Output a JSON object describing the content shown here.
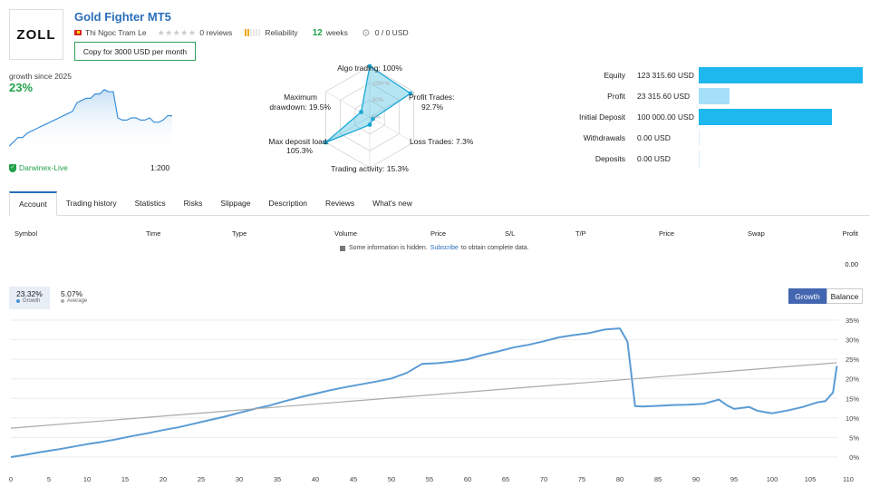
{
  "header": {
    "logo_text": "ZOLL",
    "title": "Gold Fighter MT5",
    "author": "Thi Ngoc Tram Le",
    "stars": "★★★★★",
    "reviews": "0 reviews",
    "reliability_label": "Reliability",
    "weeks_value": "12",
    "weeks_label": "weeks",
    "subscribers": "0 / 0 USD",
    "copy_button": "Copy for 3000 USD per month"
  },
  "growth_summary": {
    "label": "growth since 2025",
    "value": "23%",
    "broker": "Darwinex-Live",
    "leverage": "1:200",
    "sparkline": [
      2,
      4,
      6,
      6,
      8,
      9,
      10,
      11,
      12,
      13,
      14,
      15,
      16,
      17,
      18,
      22,
      23,
      24,
      24,
      26,
      26,
      28,
      27,
      27,
      15,
      14,
      14,
      15,
      15,
      14,
      14,
      15,
      13,
      13,
      14,
      16,
      16
    ]
  },
  "radar": {
    "labels": {
      "algo": "Algo trading: 100%",
      "profit": "Profit Trades:",
      "profit_val": "92.7%",
      "loss": "Loss Trades: 7.3%",
      "activity": "Trading activity: 15.3%",
      "deposit": "Max deposit load:",
      "deposit_val": "105.3%",
      "drawdown": "Maximum",
      "drawdown2": "drawdown: 19.5%",
      "scale_100": "100+%",
      "scale_50": "50%",
      "scale_0": "0%"
    },
    "values": [
      100,
      92.7,
      7.3,
      15.3,
      105.3,
      19.5
    ]
  },
  "metrics": [
    {
      "label": "Equity",
      "value": "123 315.60 USD",
      "amount": 123315.6,
      "color": "#1eb7ee"
    },
    {
      "label": "Profit",
      "value": "23 315.60 USD",
      "amount": 23315.6,
      "color": "#a4e0f7"
    },
    {
      "label": "Initial Deposit",
      "value": "100 000.00 USD",
      "amount": 100000.0,
      "color": "#1eb7ee"
    },
    {
      "label": "Withdrawals",
      "value": "0.00 USD",
      "amount": 0,
      "color": "#1eb7ee"
    },
    {
      "label": "Deposits",
      "value": "0.00 USD",
      "amount": 0,
      "color": "#1eb7ee"
    }
  ],
  "tabs": [
    "Account",
    "Trading history",
    "Statistics",
    "Risks",
    "Slippage",
    "Description",
    "Reviews",
    "What's new"
  ],
  "table": {
    "columns": [
      "Symbol",
      "Time",
      "Type",
      "Volume",
      "Price",
      "S/L",
      "T/P",
      "Price",
      "Swap",
      "Profit"
    ],
    "hidden_prefix": "Some information is hidden.",
    "hidden_link": "Subscribe",
    "hidden_suffix": "to obtain complete data.",
    "total_profit": "0.00"
  },
  "growth_tabs": [
    {
      "value": "23.32%",
      "label": "Growth"
    },
    {
      "value": "5.07%",
      "label": "Average"
    }
  ],
  "toggle": {
    "growth": "Growth",
    "balance": "Balance"
  },
  "chart_data": {
    "type": "line",
    "x_ticks": [
      0,
      5,
      10,
      15,
      20,
      25,
      30,
      35,
      40,
      45,
      50,
      55,
      60,
      65,
      70,
      75,
      80,
      85,
      90,
      95,
      100,
      105,
      110
    ],
    "y_ticks": [
      "0%",
      "5%",
      "10%",
      "15%",
      "20%",
      "25%",
      "30%",
      "35%"
    ],
    "xlim": [
      0,
      110
    ],
    "ylim": [
      0,
      35
    ],
    "grid": true,
    "series": [
      {
        "color": "#5b9bd5",
        "x": [
          0,
          2,
          4,
          6,
          8,
          10,
          12,
          14,
          16,
          18,
          20,
          22,
          24,
          26,
          28,
          30,
          32,
          34,
          36,
          38,
          40,
          42,
          44,
          46,
          48,
          50,
          52,
          54,
          56,
          58,
          60,
          62,
          64,
          66,
          68,
          70,
          72,
          74,
          76,
          78,
          80,
          81,
          82,
          83,
          85,
          87,
          89,
          91,
          93,
          94,
          95,
          97,
          98,
          99,
          100,
          102,
          104,
          106,
          107,
          108,
          108.5
        ],
        "y": [
          0,
          0.6,
          1.3,
          1.9,
          2.6,
          3.3,
          3.9,
          4.6,
          5.4,
          6.1,
          6.9,
          7.6,
          8.5,
          9.4,
          10.3,
          11.3,
          12.3,
          13.2,
          14.3,
          15.3,
          16.2,
          17.1,
          17.9,
          18.6,
          19.3,
          20.1,
          21.5,
          23.8,
          24.0,
          24.4,
          25.0,
          26.1,
          27.0,
          28.0,
          28.7,
          29.6,
          30.6,
          31.2,
          31.7,
          32.6,
          32.9,
          29.5,
          13.0,
          12.9,
          13.1,
          13.3,
          13.4,
          13.6,
          14.7,
          13.3,
          12.3,
          12.8,
          11.9,
          11.5,
          11.2,
          11.9,
          12.8,
          14.0,
          14.3,
          16.5,
          23.3
        ]
      },
      {
        "color": "#aaaaaa",
        "x": [
          0,
          108.5
        ],
        "y": [
          7.4,
          24.1
        ]
      }
    ]
  }
}
